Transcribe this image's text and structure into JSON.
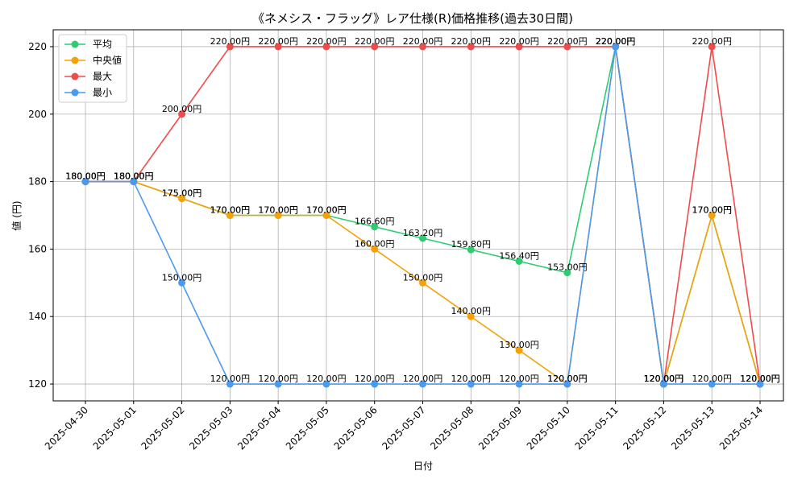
{
  "chart_data": {
    "type": "line",
    "title": "《ネメシス・フラッグ》レア仕様(R)価格推移(過去30日間)",
    "xlabel": "日付",
    "ylabel": "値 (円)",
    "x": [
      "2025-04-30",
      "2025-05-01",
      "2025-05-02",
      "2025-05-03",
      "2025-05-04",
      "2025-05-05",
      "2025-05-06",
      "2025-05-07",
      "2025-05-08",
      "2025-05-09",
      "2025-05-10",
      "2025-05-11",
      "2025-05-12",
      "2025-05-13",
      "2025-05-14"
    ],
    "ylim": [
      115,
      225
    ],
    "yticks": [
      120,
      140,
      160,
      180,
      200,
      220
    ],
    "grid": true,
    "legend_position": "top-left",
    "series": [
      {
        "name": "平均",
        "color": "#2ecc71",
        "values": [
          180,
          180,
          175,
          170,
          170,
          170,
          166.6,
          163.2,
          159.8,
          156.4,
          153,
          220,
          120,
          170,
          120
        ]
      },
      {
        "name": "中央値",
        "color": "#f5a20a",
        "values": [
          180,
          180,
          175,
          170,
          170,
          170,
          160,
          150,
          140,
          130,
          120,
          220,
          120,
          170,
          120
        ]
      },
      {
        "name": "最大",
        "color": "#ef4b4b",
        "values": [
          180,
          180,
          200,
          220,
          220,
          220,
          220,
          220,
          220,
          220,
          220,
          220,
          120,
          220,
          120
        ]
      },
      {
        "name": "最小",
        "color": "#4a9af0",
        "values": [
          180,
          180,
          150,
          120,
          120,
          120,
          120,
          120,
          120,
          120,
          120,
          220,
          120,
          120,
          120
        ]
      }
    ],
    "label_suffix": "円"
  }
}
